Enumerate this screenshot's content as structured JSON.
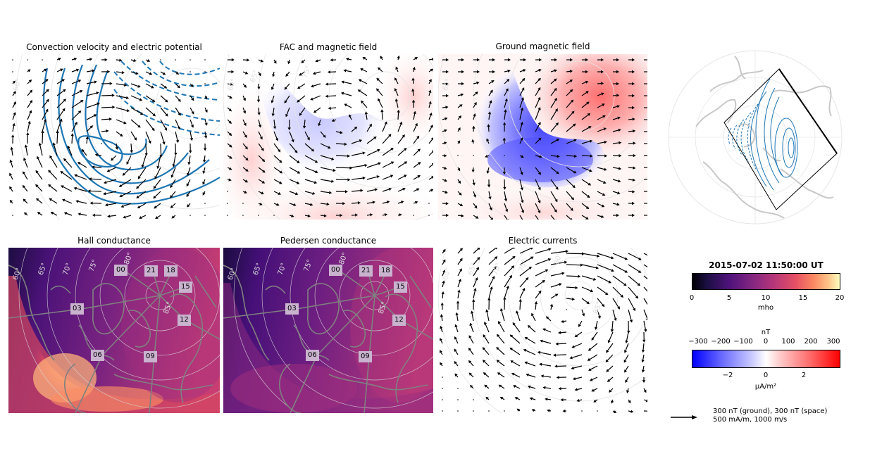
{
  "panels": {
    "convection_title": "Convection velocity and electric potential",
    "fac_title": "FAC and magnetic field",
    "ground_title": "Ground magnetic field",
    "hall_title": "Hall conductance",
    "pedersen_title": "Pedersen conductance",
    "currents_title": "Electric currents"
  },
  "latitude_labels": [
    "60°",
    "65°",
    "70°",
    "75°",
    "80°",
    "85°"
  ],
  "mlt_labels": [
    "00",
    "21",
    "18",
    "15",
    "03",
    "12",
    "06",
    "09"
  ],
  "timestamp": "2015-07-02 11:50:00 UT",
  "cond_colorbar": {
    "ticks": [
      "0",
      "5",
      "10",
      "15",
      "20"
    ],
    "label": "mho",
    "range": [
      0,
      20
    ]
  },
  "mag_colorbar": {
    "top_label": "nT",
    "top_ticks": [
      "−300",
      "−200",
      "−100",
      "0",
      "100",
      "200",
      "300"
    ],
    "bottom_ticks": [
      "−2",
      "0",
      "2"
    ],
    "bottom_label": "μA/m²"
  },
  "vector_legend": {
    "line1": "300 nT (ground), 300 nT (space)",
    "line2": "500 mA/m, 1000 m/s"
  },
  "colors": {
    "potential": "#1f77b4",
    "positive": "#ff0000",
    "negative": "#0000ff"
  }
}
